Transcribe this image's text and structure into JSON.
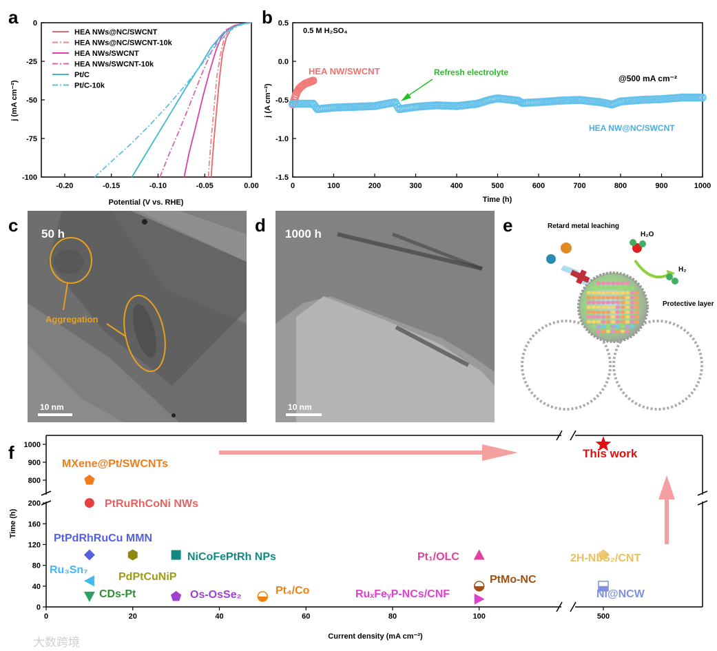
{
  "panels": {
    "a": "a",
    "b": "b",
    "c": "c",
    "d": "d",
    "e": "e",
    "f": "f"
  },
  "chart_data": [
    {
      "type": "line",
      "panel": "a",
      "xlabel": "Potential (V vs. RHE)",
      "ylabel": "j (mA cm⁻²)",
      "xlim": [
        -0.225,
        0.0
      ],
      "ylim": [
        -100,
        0
      ],
      "xticks": [
        -0.2,
        -0.15,
        -0.1,
        -0.05,
        0.0
      ],
      "xtick_labels": [
        "-0.20",
        "-0.15",
        "-0.10",
        "-0.05",
        "0.00"
      ],
      "yticks": [
        0,
        -25,
        -50,
        -75,
        -100
      ],
      "ytick_labels": [
        "0",
        "-25",
        "-50",
        "-75",
        "-100"
      ],
      "legend_position": "top-left",
      "series": [
        {
          "name": "HEA NWs@NC/SWCNT",
          "color": "#e8656b",
          "dash": "solid",
          "x": [
            -0.043,
            -0.042,
            -0.04,
            -0.037,
            -0.034,
            -0.031,
            -0.027,
            -0.022,
            -0.016,
            -0.01,
            -0.004,
            0.0
          ],
          "y": [
            -100,
            -90,
            -75,
            -55,
            -35,
            -20,
            -10,
            -4,
            -1.8,
            -0.8,
            -0.3,
            0
          ]
        },
        {
          "name": "HEA NWs@NC/SWCNT-10k",
          "color": "#e8878b",
          "dash": "dashdot",
          "x": [
            -0.046,
            -0.045,
            -0.043,
            -0.04,
            -0.037,
            -0.033,
            -0.029,
            -0.024,
            -0.018,
            -0.011,
            -0.005,
            0.0
          ],
          "y": [
            -100,
            -90,
            -75,
            -55,
            -35,
            -20,
            -10,
            -4,
            -1.8,
            -0.8,
            -0.3,
            0
          ]
        },
        {
          "name": "HEA NWs/SWCNT",
          "color": "#e03da8",
          "dash": "solid",
          "x": [
            -0.072,
            -0.067,
            -0.06,
            -0.052,
            -0.045,
            -0.038,
            -0.032,
            -0.025,
            -0.018,
            -0.011,
            -0.005,
            0.0
          ],
          "y": [
            -100,
            -85,
            -68,
            -48,
            -32,
            -18,
            -9,
            -4,
            -1.8,
            -0.8,
            -0.3,
            0
          ]
        },
        {
          "name": "HEA NWs/SWCNT-10k",
          "color": "#e45fae",
          "dash": "dashdot",
          "x": [
            -0.098,
            -0.088,
            -0.076,
            -0.064,
            -0.053,
            -0.043,
            -0.035,
            -0.027,
            -0.019,
            -0.012,
            -0.005,
            0.0
          ],
          "y": [
            -100,
            -85,
            -68,
            -50,
            -33,
            -19,
            -10,
            -4.5,
            -2,
            -0.9,
            -0.3,
            0
          ]
        },
        {
          "name": "Pt/C",
          "color": "#3fb6d4",
          "dash": "solid",
          "x": [
            -0.128,
            -0.115,
            -0.1,
            -0.085,
            -0.07,
            -0.055,
            -0.043,
            -0.032,
            -0.022,
            -0.013,
            -0.006,
            0.0
          ],
          "y": [
            -100,
            -87,
            -72,
            -57,
            -42,
            -28,
            -16,
            -8,
            -3.5,
            -1.3,
            -0.4,
            0
          ]
        },
        {
          "name": "Pt/C-10k",
          "color": "#5cc3de",
          "dash": "dashdot",
          "x": [
            -0.168,
            -0.15,
            -0.13,
            -0.11,
            -0.09,
            -0.07,
            -0.052,
            -0.037,
            -0.025,
            -0.015,
            -0.007,
            0.0
          ],
          "y": [
            -100,
            -90,
            -79,
            -67,
            -54,
            -40,
            -26,
            -14,
            -6,
            -2.2,
            -0.6,
            0
          ]
        }
      ]
    },
    {
      "type": "scatter",
      "panel": "b",
      "xlabel": "Time (h)",
      "ylabel": "j (A cm⁻²)",
      "xlim": [
        0,
        1000
      ],
      "ylim": [
        -1.5,
        0.5
      ],
      "xticks": [
        0,
        100,
        200,
        300,
        400,
        500,
        600,
        700,
        800,
        900,
        1000
      ],
      "xtick_labels": [
        "0",
        "100",
        "200",
        "300",
        "400",
        "500",
        "600",
        "700",
        "800",
        "900",
        "1000"
      ],
      "yticks": [
        0.5,
        0.0,
        -0.5,
        -1.0,
        -1.5
      ],
      "ytick_labels": [
        "0.5",
        "0.0",
        "-0.5",
        "-1.0",
        "-1.5"
      ],
      "annotations": {
        "electrolyte": "0.5 M H₂SO₄",
        "current": "@500 mA cm⁻²",
        "refresh": "Refresh electrolyte"
      },
      "series": [
        {
          "name": "HEA NW/SWCNT",
          "color": "#f07c7c",
          "x": [
            0,
            5,
            10,
            15,
            20,
            25,
            30,
            35,
            40,
            45,
            50
          ],
          "y": [
            -0.56,
            -0.48,
            -0.4,
            -0.36,
            -0.33,
            -0.31,
            -0.29,
            -0.28,
            -0.27,
            -0.26,
            -0.25
          ]
        },
        {
          "name": "HEA NW@NC/SWCNT",
          "color": "#66c2ea",
          "x": [
            0,
            50,
            60,
            100,
            150,
            200,
            250,
            260,
            300,
            350,
            400,
            450,
            480,
            500,
            550,
            560,
            600,
            650,
            700,
            750,
            780,
            800,
            850,
            900,
            950,
            1000
          ],
          "y": [
            -0.55,
            -0.55,
            -0.62,
            -0.6,
            -0.59,
            -0.58,
            -0.53,
            -0.62,
            -0.59,
            -0.57,
            -0.58,
            -0.55,
            -0.5,
            -0.48,
            -0.51,
            -0.54,
            -0.53,
            -0.51,
            -0.5,
            -0.53,
            -0.56,
            -0.52,
            -0.5,
            -0.49,
            -0.47,
            -0.47
          ]
        }
      ]
    },
    {
      "type": "scatter",
      "panel": "f",
      "xlabel": "Current density (mA cm⁻²)",
      "ylabel": "Time (h)",
      "xticks": [
        0,
        20,
        40,
        60,
        80,
        100,
        500
      ],
      "xtick_labels": [
        "0",
        "20",
        "40",
        "60",
        "80",
        "100",
        "500"
      ],
      "yticks": [
        0,
        40,
        80,
        120,
        160,
        200,
        800,
        900,
        1000
      ],
      "ytick_labels": [
        "0",
        "40",
        "80",
        "120",
        "160",
        "200",
        "800",
        "900",
        "1000"
      ],
      "axis_breaks": {
        "x": [
          115,
          495
        ],
        "y": [
          220,
          750
        ]
      },
      "points": [
        {
          "label": "MXene@Pt/SWCNTs",
          "x": 10,
          "y": 800,
          "marker": "pentagon",
          "color": "#f07c1c",
          "label_color": "#f07c1c"
        },
        {
          "label": "PtRuRhCoNi NWs",
          "x": 10,
          "y": 200,
          "marker": "circle",
          "color": "#e84040",
          "label_color": "#e86060"
        },
        {
          "label": "PtPdRhRuCu MMN",
          "x": 10,
          "y": 100,
          "marker": "diamond",
          "color": "#5560e0",
          "label_color": "#5560e0"
        },
        {
          "label": "Ru₃Sn₇",
          "x": 10,
          "y": 50,
          "marker": "left-triangle",
          "color": "#45b8ee",
          "label_color": "#45b8ee"
        },
        {
          "label": "CDs-Pt",
          "x": 10,
          "y": 20,
          "marker": "down-triangle",
          "color": "#2ea060",
          "label_color": "#2e9030"
        },
        {
          "label": "PdPtCuNiP",
          "x": 20,
          "y": 100,
          "marker": "hexagon",
          "color": "#8a8a10",
          "label_color": "#a09a10"
        },
        {
          "label": "NiCoFePtRh  NPs",
          "x": 30,
          "y": 100,
          "marker": "square",
          "color": "#108a80",
          "label_color": "#108a80"
        },
        {
          "label": "Os-OsSe₂",
          "x": 30,
          "y": 20,
          "marker": "pentagon",
          "color": "#a040d0",
          "label_color": "#a040d0"
        },
        {
          "label": "Pt₄/Co",
          "x": 50,
          "y": 20,
          "marker": "half-circle",
          "color": "#f08010",
          "label_color": "#f08010"
        },
        {
          "label": "Pt₁/OLC",
          "x": 100,
          "y": 100,
          "marker": "triangle",
          "color": "#e040a0",
          "label_color": "#e040a0"
        },
        {
          "label": "PtMo-NC",
          "x": 100,
          "y": 40,
          "marker": "half-circle",
          "color": "#a05010",
          "label_color": "#a05010"
        },
        {
          "label": "RuₓFeᵧP-NCs/CNF",
          "x": 100,
          "y": 15,
          "marker": "right-triangle",
          "color": "#e040d0",
          "label_color": "#e040d0"
        },
        {
          "label": "2H-NbS₂/CNT",
          "x": 500,
          "y": 100,
          "marker": "pentagon",
          "color": "#f0c870",
          "label_color": "#e8c060"
        },
        {
          "label": "Ni@NCW",
          "x": 500,
          "y": 40,
          "marker": "half-square",
          "color": "#8090e0",
          "label_color": "#8090e0"
        },
        {
          "label": "This work",
          "x": 500,
          "y": 1000,
          "marker": "star",
          "color": "#e01010",
          "label_color": "#e01010"
        }
      ]
    }
  ],
  "panel_c": {
    "label": "50 h",
    "annotation": "Aggregation",
    "scale_bar": "10 nm"
  },
  "panel_d": {
    "label": "1000 h",
    "scale_bar": "10 nm"
  },
  "panel_e": {
    "retard": "Retard metal leaching",
    "h2o": "H₂O",
    "h2": "H₂",
    "protective": "Protective layer"
  },
  "watermark": "大数跨境"
}
